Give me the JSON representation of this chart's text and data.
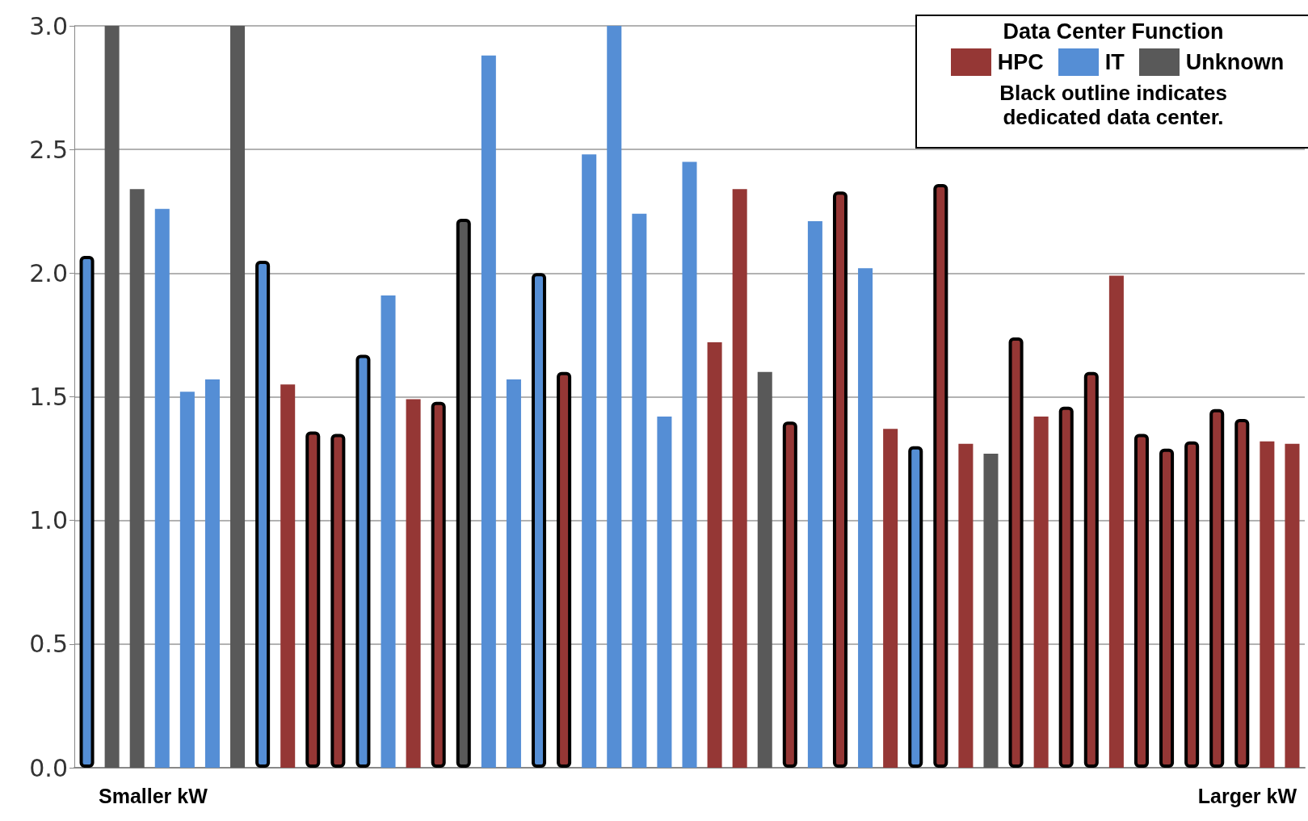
{
  "chart_data": {
    "type": "bar",
    "stacked": true,
    "legend_title": "Data Center Function",
    "legend": "top right",
    "grid": "y",
    "annotations": [
      "Black outline indicates\ndedicated data center.",
      "Smaller kW",
      "Larger kW"
    ],
    "categories": [
      null,
      null,
      null,
      null,
      null,
      null,
      null,
      null,
      null,
      null,
      null,
      null,
      null,
      null,
      null,
      null,
      null,
      null,
      null,
      null,
      null,
      null,
      null,
      null,
      null,
      null,
      null,
      null,
      null,
      null,
      null,
      null,
      null,
      null,
      null,
      null,
      null,
      null,
      null,
      null,
      null,
      null,
      null,
      null,
      null,
      null,
      null,
      null,
      null
    ],
    "ylim": [
      0,
      3
    ],
    "yticks": [
      {
        "value": 0,
        "label": "0.0"
      },
      {
        "value": 0.5,
        "label": "0.5"
      },
      {
        "value": 1,
        "label": "1.0"
      },
      {
        "value": 1.5,
        "label": "1.5"
      },
      {
        "value": 2,
        "label": "2.0"
      },
      {
        "value": 2.5,
        "label": "2.5"
      },
      {
        "value": 3,
        "label": "3.0"
      }
    ],
    "series": [
      {
        "name": "HPC",
        "color": "#953735",
        "values": [
          null,
          null,
          null,
          null,
          null,
          null,
          null,
          null,
          1.55,
          null,
          null,
          null,
          null,
          1.49,
          null,
          null,
          null,
          null,
          null,
          null,
          null,
          null,
          null,
          null,
          null,
          1.72,
          2.34,
          null,
          null,
          null,
          null,
          null,
          1.37,
          null,
          null,
          1.31,
          null,
          null,
          1.42,
          null,
          null,
          1.99,
          null,
          null,
          null,
          null,
          null,
          1.32,
          1.31
        ]
      },
      {
        "name": "IT",
        "color": "#558ed5",
        "values": [
          null,
          null,
          null,
          2.26,
          1.52,
          1.57,
          null,
          null,
          null,
          null,
          null,
          null,
          1.91,
          null,
          null,
          null,
          2.88,
          1.57,
          null,
          null,
          2.48,
          3.0,
          2.24,
          1.42,
          2.45,
          null,
          null,
          null,
          null,
          2.21,
          null,
          2.02,
          null,
          null,
          null,
          null,
          null,
          null,
          null,
          null,
          null,
          null,
          null,
          null,
          null,
          null,
          null,
          null,
          null
        ]
      },
      {
        "name": "Unknown",
        "color": "#595959",
        "values": [
          null,
          3.0,
          2.34,
          null,
          null,
          null,
          3.0,
          null,
          null,
          null,
          null,
          null,
          null,
          null,
          null,
          null,
          null,
          null,
          null,
          null,
          null,
          null,
          null,
          null,
          null,
          null,
          null,
          1.6,
          null,
          null,
          null,
          null,
          null,
          null,
          null,
          null,
          1.27,
          null,
          null,
          null,
          null,
          null,
          null,
          null,
          null,
          null,
          null,
          null,
          null
        ]
      },
      {
        "color": "#953735",
        "line_style": "solid",
        "values": [
          null,
          null,
          null,
          null,
          null,
          null,
          null,
          null,
          null,
          1.36,
          1.35,
          null,
          null,
          null,
          1.48,
          null,
          null,
          null,
          null,
          1.6,
          null,
          null,
          null,
          null,
          null,
          null,
          null,
          null,
          1.4,
          null,
          2.33,
          null,
          null,
          null,
          2.36,
          null,
          null,
          1.74,
          null,
          1.46,
          1.6,
          null,
          1.35,
          1.29,
          1.32,
          1.45,
          1.41,
          null,
          null
        ]
      },
      {
        "color": "#558ed5",
        "line_style": "solid",
        "values": [
          2.07,
          null,
          null,
          null,
          null,
          null,
          null,
          2.05,
          null,
          null,
          null,
          1.67,
          null,
          null,
          null,
          null,
          null,
          null,
          2.0,
          null,
          null,
          null,
          null,
          null,
          null,
          null,
          null,
          null,
          null,
          null,
          null,
          null,
          null,
          1.3,
          null,
          null,
          null,
          null,
          null,
          null,
          null,
          null,
          null,
          null,
          null,
          null,
          null,
          null,
          null
        ]
      },
      {
        "color": "#595959",
        "line_style": "solid",
        "values": [
          null,
          null,
          null,
          null,
          null,
          null,
          null,
          null,
          null,
          null,
          null,
          null,
          null,
          null,
          null,
          2.22,
          null,
          null,
          null,
          null,
          null,
          null,
          null,
          null,
          null,
          null,
          null,
          null,
          null,
          null,
          null,
          null,
          null,
          null,
          null,
          null,
          null,
          null,
          null,
          null,
          null,
          null,
          null,
          null,
          null,
          null,
          null,
          null,
          null
        ]
      }
    ]
  }
}
